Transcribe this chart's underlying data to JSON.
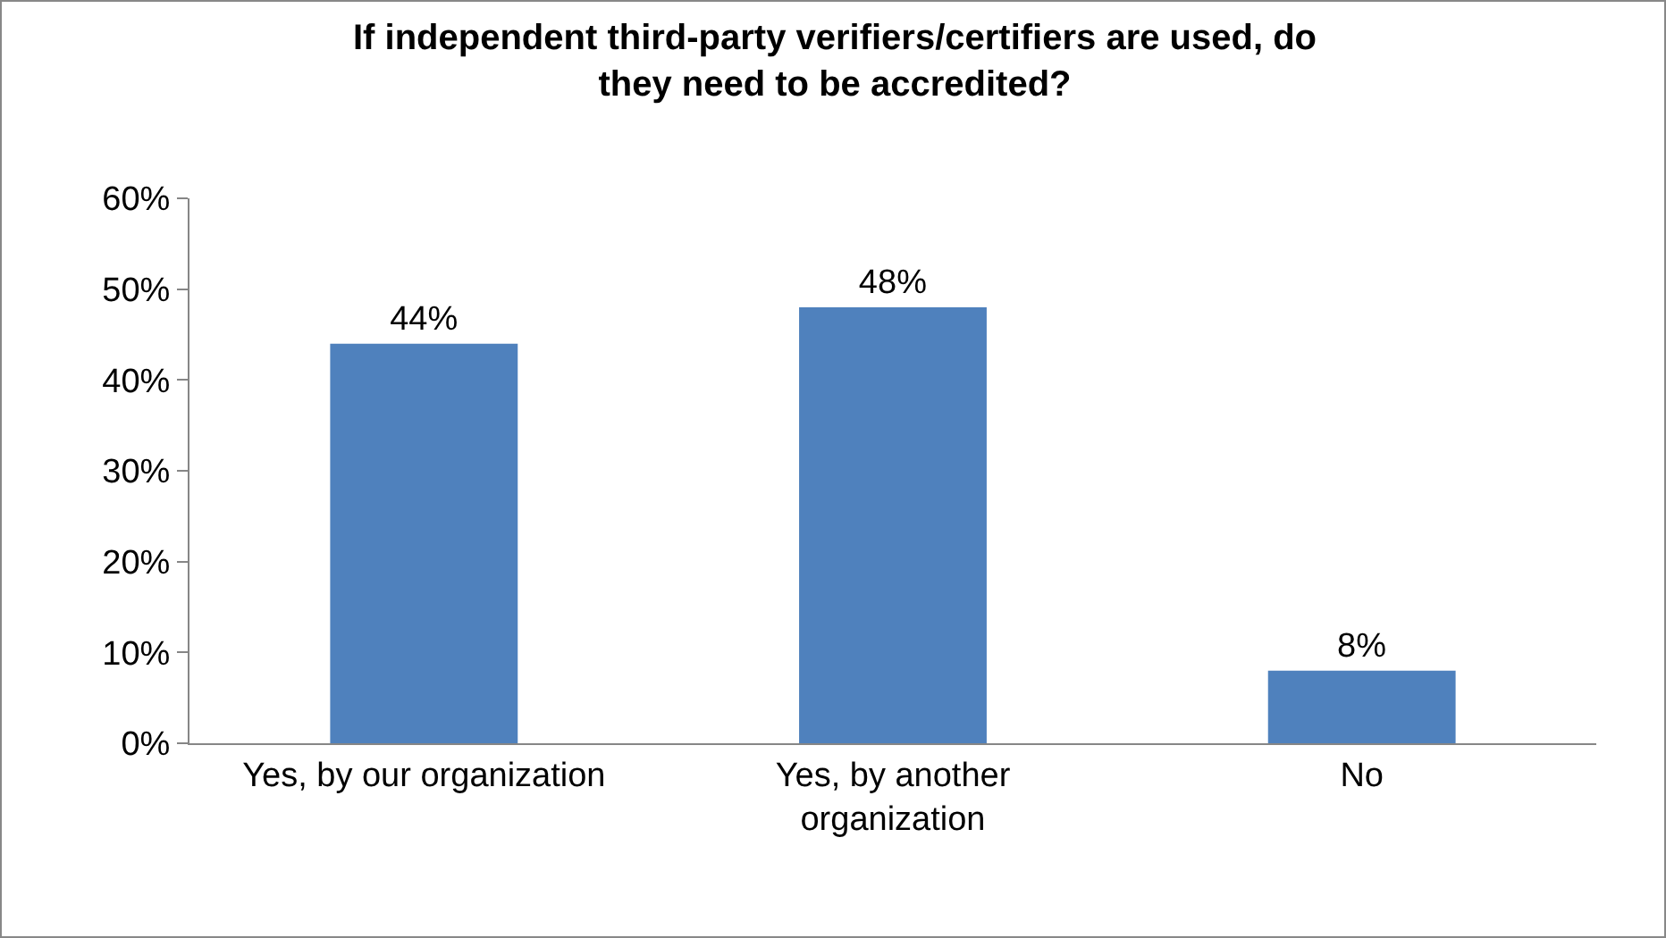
{
  "chart_data": {
    "type": "bar",
    "title": "If independent third-party verifiers/certifiers are used, do they need to be accredited?",
    "categories": [
      "Yes, by our organization",
      "Yes, by another organization",
      "No"
    ],
    "values": [
      44,
      48,
      8
    ],
    "value_labels": [
      "44%",
      "48%",
      "8%"
    ],
    "color": "#4f81bd",
    "ylim": [
      0,
      60
    ],
    "yticks": [
      {
        "value": 0,
        "label": "0%"
      },
      {
        "value": 10,
        "label": "10%"
      },
      {
        "value": 20,
        "label": "20%"
      },
      {
        "value": 30,
        "label": "30%"
      },
      {
        "value": 40,
        "label": "40%"
      },
      {
        "value": 50,
        "label": "50%"
      },
      {
        "value": 60,
        "label": "60%"
      }
    ],
    "grid": false,
    "legend": false
  }
}
